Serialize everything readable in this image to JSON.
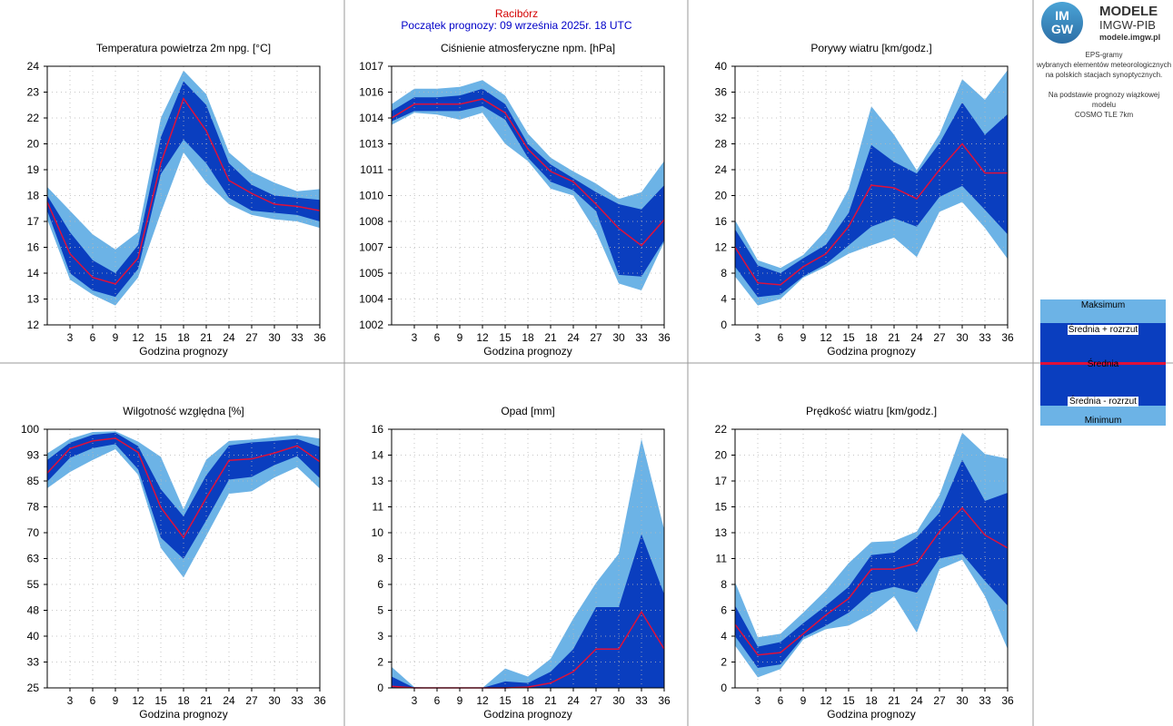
{
  "header": {
    "station": "Racibórz",
    "forecast_start": "Początek prognozy: 09 września 2025r. 18 UTC"
  },
  "logo": {
    "circle_text_top": "IM",
    "circle_text_bottom": "GW",
    "line1": "MODELE",
    "line2": "IMGW-PIB",
    "line3": "modele.imgw.pl"
  },
  "info": {
    "line1": "EPS-gramy",
    "line2": "wybranych elementów meteorologicznych",
    "line3": "na polskich stacjach  synoptycznych.",
    "line4": "Na podstawie prognozy wiązkowej modelu",
    "line5": "COSMO TLE 7km"
  },
  "legend": {
    "max": "Maksimum",
    "mean_plus": "Średnia + rozrzut",
    "mean": "Średnia",
    "mean_minus": "Średnia - rozrzut",
    "min": "Minimum"
  },
  "colors": {
    "light_band": "#6cb3e6",
    "dark_band": "#0a3ebf",
    "mean_line": "#e0103a",
    "grid": "#b8b8b8"
  },
  "chart_data": [
    {
      "type": "area",
      "title": "Temperatura powietrza 2m npg. [°C]",
      "xlabel": "Godzina prognozy",
      "x": [
        0,
        3,
        6,
        9,
        12,
        15,
        18,
        21,
        24,
        27,
        30,
        33,
        36
      ],
      "x_ticks": [
        3,
        6,
        9,
        12,
        15,
        18,
        21,
        24,
        27,
        30,
        33,
        36
      ],
      "ylim": [
        12,
        24
      ],
      "y_ticks": [
        "12",
        "13",
        "14",
        "16",
        "17",
        "18",
        "19",
        "20",
        "22",
        "23",
        "24"
      ],
      "min": [
        16.9,
        14.1,
        13.4,
        12.9,
        14.2,
        17.2,
        20.0,
        18.6,
        17.6,
        17.1,
        16.9,
        16.8,
        16.5
      ],
      "mean_minus": [
        17.3,
        14.4,
        13.6,
        13.3,
        14.6,
        19.0,
        20.6,
        19.5,
        17.9,
        17.3,
        17.2,
        17.1,
        16.8
      ],
      "mean": [
        17.7,
        15.3,
        14.2,
        13.9,
        15.1,
        19.5,
        22.5,
        21.0,
        18.7,
        18.1,
        17.6,
        17.5,
        17.3
      ],
      "mean_plus": [
        18.0,
        16.3,
        15.0,
        14.4,
        15.7,
        20.7,
        23.3,
        22.2,
        19.5,
        18.5,
        18.0,
        17.9,
        17.8
      ],
      "max": [
        18.4,
        17.3,
        16.2,
        15.5,
        16.3,
        21.6,
        23.8,
        22.7,
        20.0,
        19.1,
        18.6,
        18.2,
        18.3
      ]
    },
    {
      "type": "area",
      "title": "Ciśnienie atmosferyczne npm. [hPa]",
      "xlabel": "Godzina prognozy",
      "x": [
        0,
        3,
        6,
        9,
        12,
        15,
        18,
        21,
        24,
        27,
        30,
        33,
        36
      ],
      "x_ticks": [
        3,
        6,
        9,
        12,
        15,
        18,
        21,
        24,
        27,
        30,
        33,
        36
      ],
      "ylim": [
        1002,
        1017
      ],
      "y_ticks": [
        "1002",
        "1004",
        "1005",
        "1007",
        "1008",
        "1010",
        "1011",
        "1013",
        "1014",
        "1016",
        "1017"
      ],
      "min": [
        1013.6,
        1014.3,
        1014.2,
        1013.9,
        1014.3,
        1012.5,
        1011.5,
        1009.9,
        1009.5,
        1007.4,
        1004.4,
        1004.0,
        1006.8
      ],
      "mean_minus": [
        1013.8,
        1014.4,
        1014.4,
        1014.4,
        1014.7,
        1013.9,
        1011.7,
        1010.3,
        1009.8,
        1008.6,
        1004.9,
        1004.8,
        1006.9
      ],
      "mean": [
        1014.0,
        1014.8,
        1014.8,
        1014.8,
        1015.1,
        1014.3,
        1012.2,
        1010.9,
        1010.3,
        1009.0,
        1007.6,
        1006.6,
        1008.1
      ],
      "mean_plus": [
        1014.4,
        1015.2,
        1015.2,
        1015.3,
        1015.7,
        1014.8,
        1012.5,
        1011.3,
        1010.5,
        1009.7,
        1009.0,
        1008.7,
        1010.1
      ],
      "max": [
        1014.8,
        1015.7,
        1015.7,
        1015.8,
        1016.2,
        1015.3,
        1013.1,
        1011.7,
        1010.9,
        1010.2,
        1009.3,
        1009.7,
        1011.5
      ]
    },
    {
      "type": "area",
      "title": "Porywy wiatru [km/godz.]",
      "xlabel": "Godzina prognozy",
      "x": [
        0,
        3,
        6,
        9,
        12,
        15,
        18,
        21,
        24,
        27,
        30,
        33,
        36
      ],
      "x_ticks": [
        3,
        6,
        9,
        12,
        15,
        18,
        21,
        24,
        27,
        30,
        33,
        36
      ],
      "ylim": [
        0,
        40
      ],
      "y_ticks": [
        "0",
        "4",
        "8",
        "12",
        "16",
        "20",
        "24",
        "28",
        "32",
        "36",
        "40"
      ],
      "min": [
        7.5,
        3.0,
        4.0,
        7.3,
        9.0,
        11.0,
        12.3,
        13.5,
        10.5,
        17.5,
        19.0,
        15.0,
        10.2
      ],
      "mean_minus": [
        9.0,
        4.3,
        4.7,
        7.5,
        9.4,
        12.3,
        15.2,
        16.5,
        15.2,
        19.8,
        21.5,
        17.8,
        14.0
      ],
      "mean": [
        12.0,
        6.5,
        6.2,
        9.0,
        11.0,
        15.2,
        21.6,
        21.2,
        19.5,
        24.0,
        28.0,
        23.5,
        23.5
      ],
      "mean_plus": [
        14.8,
        9.2,
        8.0,
        10.3,
        12.4,
        17.3,
        27.8,
        25.2,
        23.4,
        28.1,
        34.4,
        29.4,
        32.6
      ],
      "max": [
        16.2,
        10.0,
        8.8,
        10.8,
        14.6,
        21.0,
        33.8,
        29.4,
        23.9,
        29.5,
        38.0,
        34.8,
        39.4
      ]
    },
    {
      "type": "area",
      "title": "Wilgotność względna [%]",
      "xlabel": "Godzina prognozy",
      "x": [
        0,
        3,
        6,
        9,
        12,
        15,
        18,
        21,
        24,
        27,
        30,
        33,
        36
      ],
      "x_ticks": [
        3,
        6,
        9,
        12,
        15,
        18,
        21,
        24,
        27,
        30,
        33,
        36
      ],
      "ylim": [
        25,
        100
      ],
      "y_ticks": [
        "25",
        "33",
        "40",
        "48",
        "55",
        "63",
        "70",
        "78",
        "85",
        "93",
        "100"
      ],
      "min": [
        82.9,
        87.6,
        91.1,
        94.2,
        86.8,
        65.6,
        57.0,
        69.0,
        81.3,
        82.0,
        86.0,
        89.0,
        82.8
      ],
      "mean_minus": [
        84.8,
        91.7,
        94.5,
        95.7,
        88.4,
        68.6,
        62.4,
        73.6,
        85.4,
        86.2,
        89.6,
        92.2,
        85.8
      ],
      "mean": [
        87.3,
        94.4,
        96.6,
        97.4,
        93.3,
        77.3,
        68.6,
        80.1,
        91.0,
        91.4,
        93.1,
        95.2,
        90.6
      ],
      "mean_plus": [
        91.1,
        96.1,
        98.4,
        99.0,
        95.1,
        82.6,
        74.7,
        86.6,
        95.3,
        96.2,
        96.6,
        97.2,
        94.9
      ],
      "max": [
        93.0,
        97.2,
        99.2,
        99.4,
        96.4,
        92.0,
        76.8,
        91.2,
        96.6,
        97.0,
        97.7,
        98.3,
        97.3
      ]
    },
    {
      "type": "area",
      "title": "Opad [mm]",
      "xlabel": "Godzina prognozy",
      "x": [
        0,
        3,
        6,
        9,
        12,
        15,
        18,
        21,
        24,
        27,
        30,
        33,
        36
      ],
      "x_ticks": [
        3,
        6,
        9,
        12,
        15,
        18,
        21,
        24,
        27,
        30,
        33,
        36
      ],
      "ylim": [
        0,
        16
      ],
      "y_ticks": [
        "0",
        "2",
        "3",
        "5",
        "6",
        "8",
        "10",
        "11",
        "13",
        "14",
        "16"
      ],
      "min": [
        0,
        0,
        0,
        0,
        0,
        0,
        0,
        0,
        0,
        0,
        0,
        0,
        0
      ],
      "mean_minus": [
        0,
        0,
        0,
        0,
        0,
        0,
        0,
        0,
        0,
        0,
        0,
        0,
        0
      ],
      "mean": [
        0.1,
        0,
        0,
        0,
        0,
        0,
        0.05,
        0.3,
        1.0,
        2.4,
        2.4,
        4.7,
        2.4
      ],
      "mean_plus": [
        0.7,
        0,
        0,
        0,
        0,
        0.4,
        0.3,
        1.0,
        2.4,
        5.0,
        5.0,
        9.5,
        5.8
      ],
      "max": [
        1.3,
        0.05,
        0,
        0,
        0,
        1.2,
        0.7,
        1.8,
        4.3,
        6.5,
        8.3,
        15.4,
        9.8
      ]
    },
    {
      "type": "area",
      "title": "Prędkość wiatru [km/godz.]",
      "xlabel": "Godzina prognozy",
      "x": [
        0,
        3,
        6,
        9,
        12,
        15,
        18,
        21,
        24,
        27,
        30,
        33,
        36
      ],
      "x_ticks": [
        3,
        6,
        9,
        12,
        15,
        18,
        21,
        24,
        27,
        30,
        33,
        36
      ],
      "ylim": [
        0,
        22
      ],
      "y_ticks": [
        "0",
        "2",
        "4",
        "6",
        "8",
        "11",
        "13",
        "15",
        "17",
        "20",
        "22"
      ],
      "min": [
        3.6,
        0.9,
        1.6,
        4.1,
        5.0,
        5.3,
        6.3,
        7.8,
        4.7,
        10.1,
        10.9,
        7.8,
        3.3
      ],
      "mean_minus": [
        4.4,
        1.7,
        2.0,
        4.3,
        5.3,
        6.4,
        8.1,
        8.6,
        8.1,
        11.0,
        11.4,
        9.1,
        7.0
      ],
      "mean": [
        5.4,
        2.8,
        3.0,
        4.6,
        6.2,
        7.6,
        10.1,
        10.1,
        10.6,
        13.3,
        15.3,
        13.0,
        11.9
      ],
      "mean_plus": [
        7.0,
        3.5,
        3.9,
        5.5,
        7.0,
        8.6,
        11.3,
        11.5,
        12.8,
        14.9,
        19.4,
        15.9,
        16.6
      ],
      "max": [
        9.0,
        4.3,
        4.6,
        6.4,
        8.3,
        10.6,
        12.4,
        12.5,
        13.3,
        16.4,
        21.7,
        19.9,
        19.5
      ]
    }
  ]
}
